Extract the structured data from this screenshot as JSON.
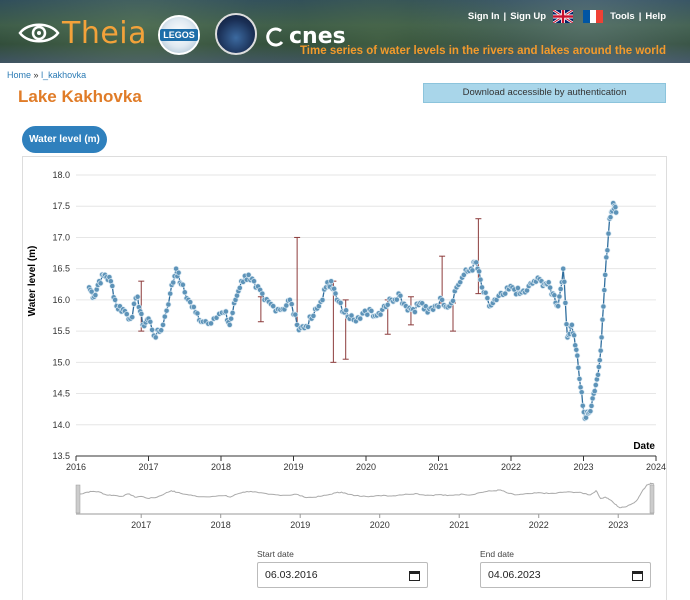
{
  "header": {
    "brand": "Theia",
    "legos_label": "LEGOS",
    "cnes_label": "cnes",
    "nav": [
      "Sign In",
      "Sign Up",
      "Tools",
      "Help"
    ],
    "tagline": "Time series of water levels in the rivers and lakes around the world"
  },
  "breadcrumb": {
    "home": "Home",
    "sep": "»",
    "current": "l_kakhovka"
  },
  "page": {
    "title": "Lake Kakhovka",
    "download_label": "Download accessible by authentication",
    "tab_label": "Water level (m)"
  },
  "dates": {
    "start_label": "Start date",
    "start_value": "06.03.2016",
    "end_label": "End date",
    "end_value": "04.06.2023"
  },
  "chart_data": {
    "type": "line",
    "title": "",
    "xlabel": "Date",
    "ylabel": "Water level (m)",
    "xlim": [
      2016,
      2024
    ],
    "ylim": [
      13.5,
      18.0
    ],
    "grid": true,
    "x_ticks": [
      "2016",
      "2017",
      "2018",
      "2019",
      "2020",
      "2021",
      "2022",
      "2023",
      "2024"
    ],
    "y_ticks": [
      "13.5",
      "14.0",
      "14.5",
      "15.0",
      "15.5",
      "16.0",
      "16.5",
      "17.0",
      "17.5",
      "18.0"
    ],
    "navigator_ticks": [
      "2017",
      "2018",
      "2019",
      "2020",
      "2021",
      "2022",
      "2023"
    ],
    "series": [
      {
        "name": "Water level",
        "color": "#2f6e9e",
        "points": [
          [
            2016.18,
            16.2
          ],
          [
            2016.25,
            16.05
          ],
          [
            2016.32,
            16.3
          ],
          [
            2016.4,
            16.4
          ],
          [
            2016.48,
            16.3
          ],
          [
            2016.56,
            15.9
          ],
          [
            2016.65,
            15.85
          ],
          [
            2016.75,
            15.7
          ],
          [
            2016.85,
            16.05
          ],
          [
            2016.92,
            15.6
          ],
          [
            2017.0,
            15.7
          ],
          [
            2017.1,
            15.4
          ],
          [
            2017.2,
            15.6
          ],
          [
            2017.3,
            16.1
          ],
          [
            2017.38,
            16.5
          ],
          [
            2017.45,
            16.25
          ],
          [
            2017.55,
            16.0
          ],
          [
            2017.65,
            15.8
          ],
          [
            2017.75,
            15.65
          ],
          [
            2017.9,
            15.7
          ],
          [
            2018.05,
            15.8
          ],
          [
            2018.12,
            15.6
          ],
          [
            2018.2,
            16.0
          ],
          [
            2018.28,
            16.3
          ],
          [
            2018.38,
            16.4
          ],
          [
            2018.48,
            16.2
          ],
          [
            2018.6,
            16.0
          ],
          [
            2018.72,
            15.9
          ],
          [
            2018.85,
            15.85
          ],
          [
            2018.95,
            16.0
          ],
          [
            2019.05,
            15.6
          ],
          [
            2019.15,
            15.55
          ],
          [
            2019.25,
            15.7
          ],
          [
            2019.35,
            15.9
          ],
          [
            2019.45,
            16.2
          ],
          [
            2019.52,
            16.3
          ],
          [
            2019.6,
            16.0
          ],
          [
            2019.7,
            15.8
          ],
          [
            2019.8,
            15.75
          ],
          [
            2019.92,
            15.7
          ],
          [
            2020.05,
            15.85
          ],
          [
            2020.15,
            15.75
          ],
          [
            2020.25,
            15.9
          ],
          [
            2020.35,
            16.0
          ],
          [
            2020.45,
            16.1
          ],
          [
            2020.55,
            15.9
          ],
          [
            2020.65,
            15.85
          ],
          [
            2020.75,
            15.95
          ],
          [
            2020.85,
            15.8
          ],
          [
            2020.95,
            15.9
          ],
          [
            2021.05,
            16.0
          ],
          [
            2021.15,
            15.9
          ],
          [
            2021.25,
            16.2
          ],
          [
            2021.35,
            16.4
          ],
          [
            2021.45,
            16.5
          ],
          [
            2021.52,
            16.6
          ],
          [
            2021.6,
            16.2
          ],
          [
            2021.7,
            15.9
          ],
          [
            2021.8,
            16.0
          ],
          [
            2021.92,
            16.1
          ],
          [
            2022.02,
            16.2
          ],
          [
            2022.12,
            16.1
          ],
          [
            2022.22,
            16.15
          ],
          [
            2022.32,
            16.3
          ],
          [
            2022.42,
            16.3
          ],
          [
            2022.5,
            16.25
          ],
          [
            2022.58,
            16.1
          ],
          [
            2022.65,
            15.9
          ],
          [
            2022.72,
            16.5
          ],
          [
            2022.78,
            15.4
          ],
          [
            2022.84,
            15.6
          ],
          [
            2022.9,
            15.2
          ],
          [
            2022.96,
            14.6
          ],
          [
            2023.02,
            14.1
          ],
          [
            2023.08,
            14.2
          ],
          [
            2023.14,
            14.5
          ],
          [
            2023.2,
            14.8
          ],
          [
            2023.25,
            15.4
          ],
          [
            2023.3,
            16.4
          ],
          [
            2023.36,
            17.3
          ],
          [
            2023.41,
            17.55
          ],
          [
            2023.45,
            17.4
          ]
        ]
      }
    ]
  }
}
